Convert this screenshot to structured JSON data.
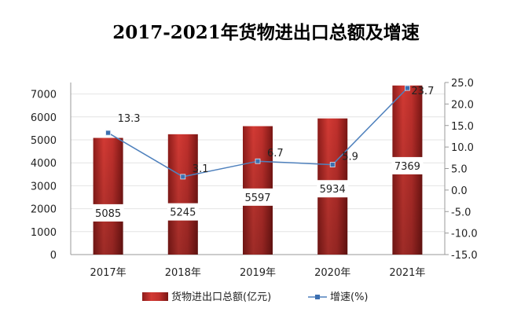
{
  "chart_data": {
    "type": "bar+line",
    "title": "2017-2021年货物进出口总额及增速",
    "categories": [
      "2017年",
      "2018年",
      "2019年",
      "2020年",
      "2021年"
    ],
    "series": [
      {
        "name": "货物进出口总额(亿元)",
        "type": "bar",
        "axis": "left",
        "values": [
          5085,
          5245,
          5597,
          5934,
          7369
        ],
        "color": "#c0302c"
      },
      {
        "name": "增速(%)",
        "type": "line",
        "axis": "right",
        "values": [
          13.3,
          3.1,
          6.7,
          5.9,
          23.7
        ],
        "color": "#4f81bd"
      }
    ],
    "left_axis": {
      "ylim": [
        0,
        7500
      ],
      "ticks": [
        "0",
        "1000",
        "2000",
        "3000",
        "4000",
        "5000",
        "6000",
        "7000"
      ]
    },
    "right_axis": {
      "ylim": [
        -15,
        25
      ],
      "ticks": [
        "-15.0",
        "-10.0",
        "-5.0",
        "0.0",
        "5.0",
        "10.0",
        "15.0",
        "20.0",
        "25.0"
      ]
    },
    "grid": true,
    "legend": "bottom"
  }
}
